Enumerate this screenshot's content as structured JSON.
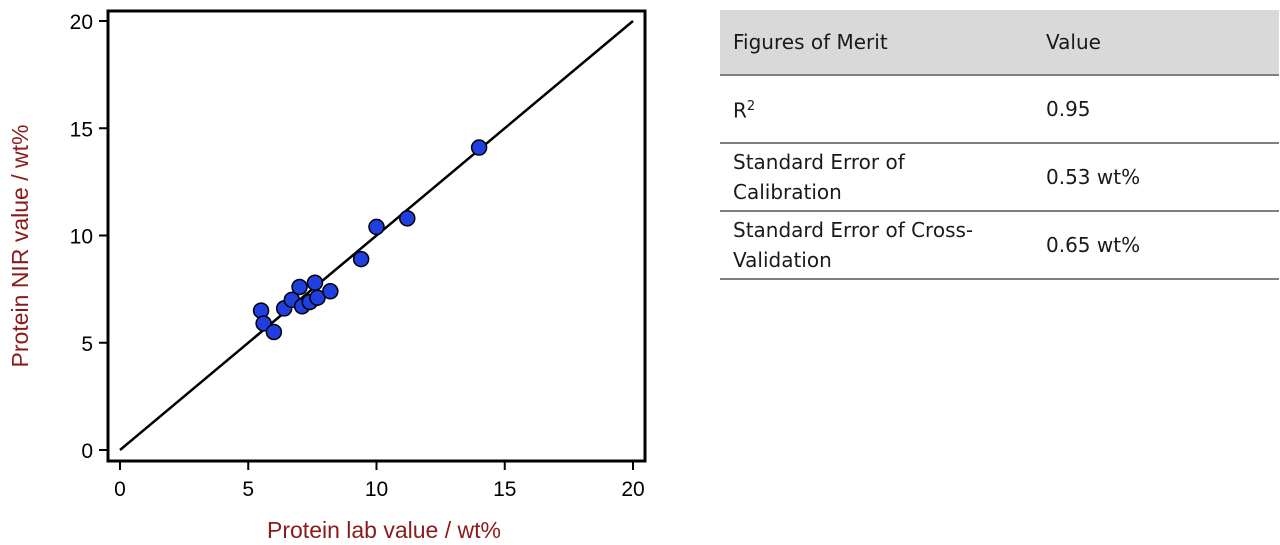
{
  "chart_data": {
    "type": "scatter",
    "title": "",
    "xlabel": "Protein lab value / wt%",
    "ylabel": "Protein NIR value / wt%",
    "xlim": [
      0,
      20
    ],
    "ylim": [
      0,
      20
    ],
    "xticks": [
      0,
      5,
      10,
      15,
      20
    ],
    "yticks": [
      0,
      5,
      10,
      15,
      20
    ],
    "grid": false,
    "marker_color": "#1f3fe0",
    "line_color": "#000000",
    "reference_line": {
      "x": [
        0,
        20
      ],
      "y": [
        0,
        20
      ]
    },
    "points": [
      {
        "x": 5.5,
        "y": 6.5
      },
      {
        "x": 5.6,
        "y": 5.9
      },
      {
        "x": 6.0,
        "y": 5.5
      },
      {
        "x": 6.4,
        "y": 6.6
      },
      {
        "x": 6.7,
        "y": 7.0
      },
      {
        "x": 7.0,
        "y": 7.6
      },
      {
        "x": 7.1,
        "y": 6.7
      },
      {
        "x": 7.4,
        "y": 6.9
      },
      {
        "x": 7.6,
        "y": 7.8
      },
      {
        "x": 7.7,
        "y": 7.1
      },
      {
        "x": 8.2,
        "y": 7.4
      },
      {
        "x": 9.4,
        "y": 8.9
      },
      {
        "x": 10.0,
        "y": 10.4
      },
      {
        "x": 11.2,
        "y": 10.8
      },
      {
        "x": 14.0,
        "y": 14.1
      }
    ]
  },
  "table": {
    "header": {
      "col1": "Figures of Merit",
      "col2": "Value"
    },
    "rows": [
      {
        "metric_base": "R",
        "metric_sup": "2",
        "value": "0.95"
      },
      {
        "metric_line1": "Standard Error of",
        "metric_line2": "Calibration",
        "value": "0.53 wt%"
      },
      {
        "metric_line1": "Standard Error of Cross-",
        "metric_line2": "Validation",
        "value": "0.65 wt%"
      }
    ]
  }
}
